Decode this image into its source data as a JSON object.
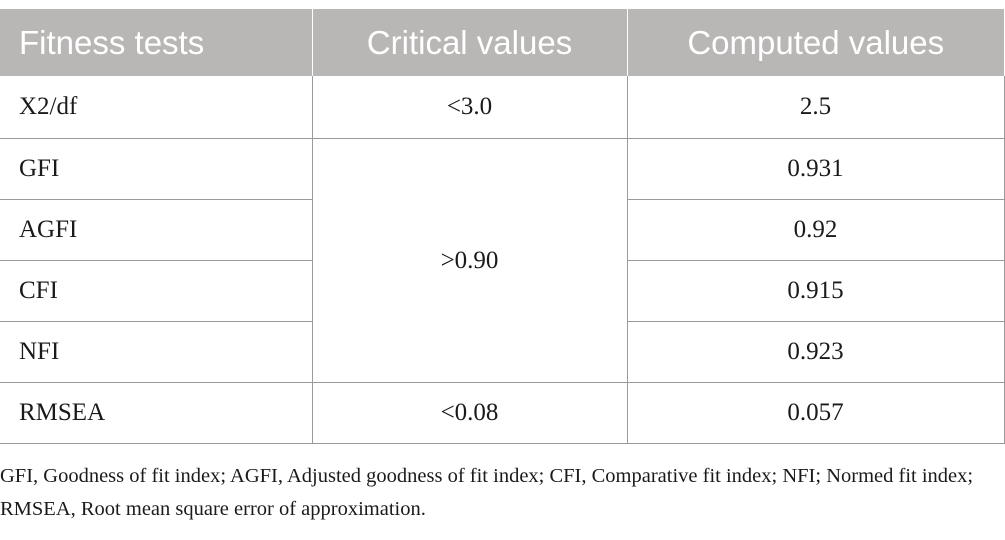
{
  "table": {
    "headers": [
      "Fitness tests",
      "Critical values",
      "Computed values"
    ],
    "rows": [
      {
        "test": "X2/df",
        "critical": "<3.0",
        "computed": "2.5"
      },
      {
        "test": "GFI",
        "critical": ">0.90",
        "computed": "0.931"
      },
      {
        "test": "AGFI",
        "critical": "",
        "computed": "0.92"
      },
      {
        "test": "CFI",
        "critical": "",
        "computed": "0.915"
      },
      {
        "test": "NFI",
        "critical": "",
        "computed": "0.923"
      },
      {
        "test": "RMSEA",
        "critical": "<0.08",
        "computed": "0.057"
      }
    ]
  },
  "footnote": "GFI, Goodness of fit index; AGFI, Adjusted goodness of fit index; CFI, Comparative fit index; NFI; Normed fit index; RMSEA, Root mean square error of approximation.",
  "colors": {
    "header_bg": "#b9b7b6",
    "header_text": "#ffffff",
    "grid": "#9a9a9a"
  }
}
